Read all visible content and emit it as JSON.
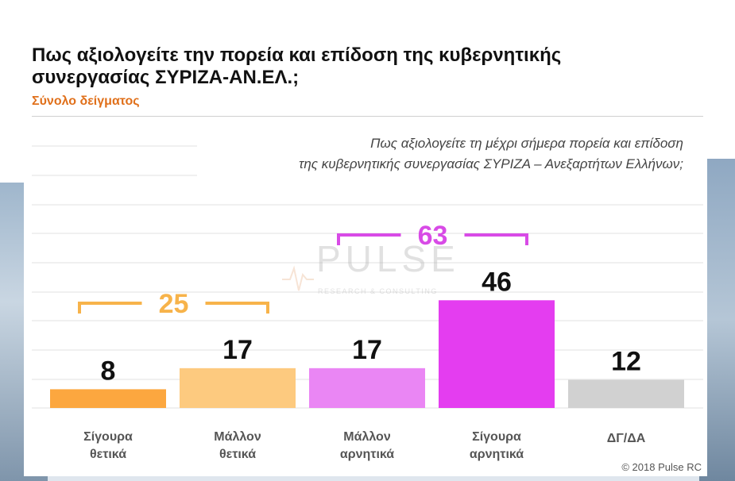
{
  "title": "Πως αξιολογείτε την πορεία και επίδοση της κυβερνητικής συνεργασίας ΣΥΡΙΖΑ-ΑΝ.ΕΛ.;",
  "subtitle": "Σύνολο δείγματος",
  "question_line1": "Πως αξιολογείτε τη μέχρι σήμερα πορεία και επίδοση",
  "question_line2": "της κυβερνητικής συνεργασίας ΣΥΡΙΖΑ – Ανεξαρτήτων Ελλήνων;",
  "watermark": "PULSE RESEARCH & CONSULTING",
  "copyright": "© 2018 Pulse RC",
  "chart_data": {
    "type": "bar",
    "categories": [
      [
        "Σίγουρα",
        "θετικά"
      ],
      [
        "Μάλλον",
        "θετικά"
      ],
      [
        "Μάλλον",
        "αρνητικά"
      ],
      [
        "Σίγουρα",
        "αρνητικά"
      ],
      [
        "ΔΓ/ΔΑ"
      ]
    ],
    "values": [
      8,
      17,
      17,
      46,
      12
    ],
    "colors": [
      "#fca73f",
      "#fdca7f",
      "#ea86f4",
      "#e43df0",
      "#d1d1d1"
    ],
    "groups": [
      {
        "label": "25",
        "from": 0,
        "to": 1,
        "color": "#f7b34a"
      },
      {
        "label": "63",
        "from": 2,
        "to": 3,
        "color": "#d84be6"
      }
    ],
    "ylim": [
      0,
      70
    ],
    "grid": true
  }
}
